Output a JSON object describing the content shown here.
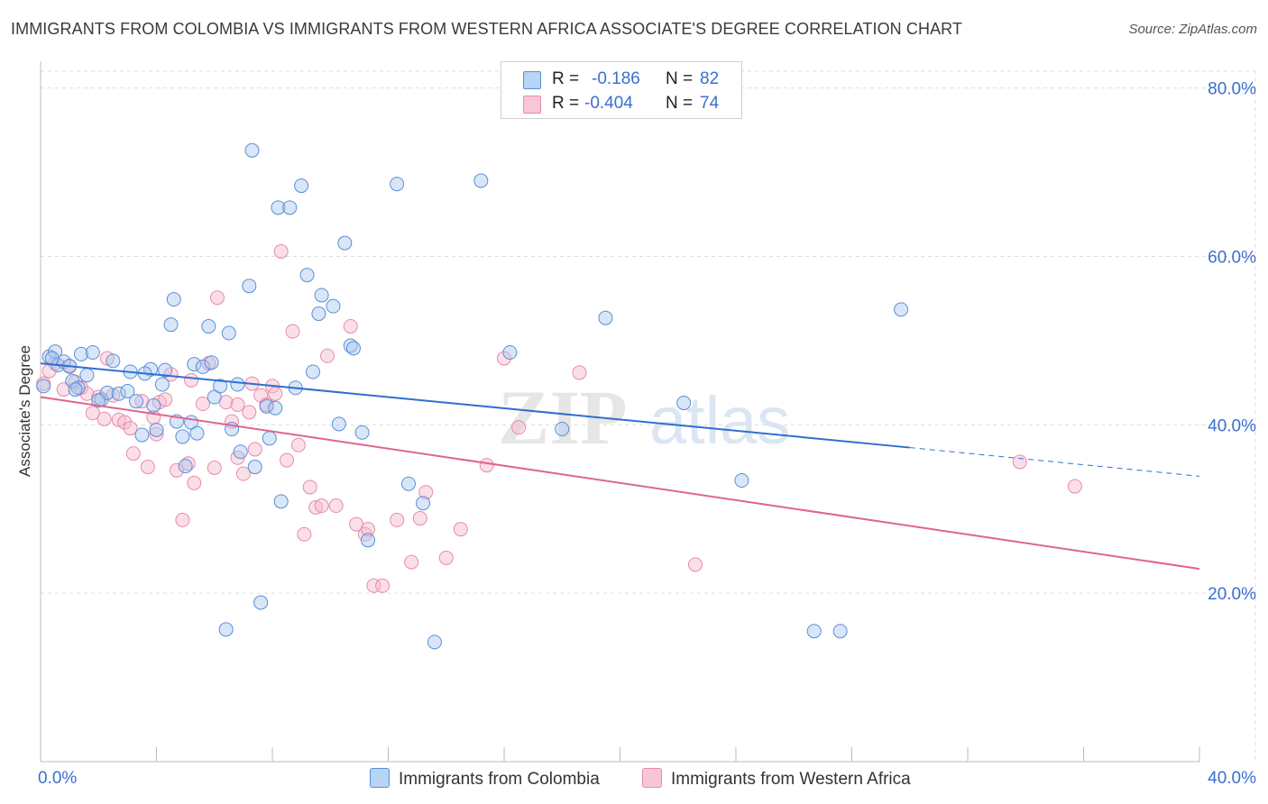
{
  "title": "IMMIGRANTS FROM COLOMBIA VS IMMIGRANTS FROM WESTERN AFRICA ASSOCIATE'S DEGREE CORRELATION CHART",
  "source": "Source: ZipAtlas.com",
  "watermark": {
    "part1": "ZIP",
    "part2": "atlas"
  },
  "colors": {
    "blue_fill": "#a9c8f0",
    "blue_stroke": "#5a8fd6",
    "blue_line": "#2f6fd0",
    "pink_fill": "#f7b8cb",
    "pink_stroke": "#e98aa8",
    "pink_line": "#e0648f",
    "tick_label": "#3a6fd0",
    "grid": "#dddddd"
  },
  "legend_top": {
    "rows": [
      {
        "series": "blue",
        "r_label": "R =",
        "r_value": "-0.186",
        "n_label": "N =",
        "n_value": "82"
      },
      {
        "series": "pink",
        "r_label": "R =",
        "r_value": "-0.404",
        "n_label": "N =",
        "n_value": "74"
      }
    ]
  },
  "legend_bottom": {
    "items": [
      {
        "series": "blue",
        "label": "Immigrants from Colombia"
      },
      {
        "series": "pink",
        "label": "Immigrants from Western Africa"
      }
    ]
  },
  "chart_data": {
    "type": "scatter",
    "title": "IMMIGRANTS FROM COLOMBIA VS IMMIGRANTS FROM WESTERN AFRICA ASSOCIATE'S DEGREE CORRELATION CHART",
    "xlabel": "",
    "ylabel": "Associate's Degree",
    "xlim": [
      0,
      40
    ],
    "ylim": [
      0,
      82
    ],
    "x_tick_labels": [
      {
        "value": 0,
        "label": "0.0%"
      },
      {
        "value": 40,
        "label": "40.0%"
      }
    ],
    "y_tick_labels": [
      {
        "value": 20,
        "label": "20.0%"
      },
      {
        "value": 40,
        "label": "40.0%"
      },
      {
        "value": 60,
        "label": "60.0%"
      },
      {
        "value": 80,
        "label": "80.0%"
      }
    ],
    "grid": true,
    "series": [
      {
        "name": "Immigrants from Colombia",
        "color": "blue",
        "R": -0.186,
        "N": 82,
        "trend": {
          "x_start": 0,
          "y_start": 47.3,
          "x_end": 30,
          "y_end": 37.3,
          "dash_to_x": 40,
          "dash_to_y": 33.9
        },
        "points": [
          [
            0.1,
            44.6
          ],
          [
            0.3,
            48.1
          ],
          [
            0.5,
            48.7
          ],
          [
            0.6,
            47.1
          ],
          [
            0.8,
            47.5
          ],
          [
            1.0,
            47.0
          ],
          [
            1.1,
            45.2
          ],
          [
            1.3,
            44.4
          ],
          [
            1.4,
            48.4
          ],
          [
            1.6,
            45.9
          ],
          [
            1.8,
            48.6
          ],
          [
            2.1,
            43.0
          ],
          [
            2.3,
            43.8
          ],
          [
            2.5,
            47.6
          ],
          [
            2.7,
            43.7
          ],
          [
            3.0,
            44.0
          ],
          [
            3.1,
            46.3
          ],
          [
            3.3,
            42.8
          ],
          [
            3.5,
            38.8
          ],
          [
            3.8,
            46.6
          ],
          [
            3.9,
            42.3
          ],
          [
            4.0,
            39.4
          ],
          [
            4.2,
            44.8
          ],
          [
            4.3,
            46.5
          ],
          [
            4.5,
            51.9
          ],
          [
            4.6,
            54.9
          ],
          [
            4.7,
            40.4
          ],
          [
            4.9,
            38.6
          ],
          [
            5.2,
            40.3
          ],
          [
            5.3,
            47.2
          ],
          [
            5.4,
            39.0
          ],
          [
            5.6,
            46.9
          ],
          [
            5.8,
            51.7
          ],
          [
            5.9,
            47.4
          ],
          [
            6.0,
            43.3
          ],
          [
            6.2,
            44.6
          ],
          [
            6.4,
            15.7
          ],
          [
            6.5,
            50.9
          ],
          [
            6.6,
            39.5
          ],
          [
            6.8,
            44.8
          ],
          [
            7.2,
            56.5
          ],
          [
            7.3,
            72.6
          ],
          [
            7.4,
            35.0
          ],
          [
            7.6,
            18.9
          ],
          [
            7.8,
            42.2
          ],
          [
            7.9,
            38.4
          ],
          [
            8.1,
            42.0
          ],
          [
            8.2,
            65.8
          ],
          [
            8.3,
            30.9
          ],
          [
            8.6,
            65.8
          ],
          [
            8.8,
            44.4
          ],
          [
            9.0,
            68.4
          ],
          [
            9.2,
            57.8
          ],
          [
            9.4,
            46.3
          ],
          [
            9.6,
            53.2
          ],
          [
            9.7,
            55.4
          ],
          [
            10.1,
            54.1
          ],
          [
            10.3,
            40.1
          ],
          [
            10.5,
            61.6
          ],
          [
            10.7,
            49.4
          ],
          [
            10.8,
            49.1
          ],
          [
            11.1,
            39.1
          ],
          [
            11.3,
            26.3
          ],
          [
            12.3,
            68.6
          ],
          [
            12.7,
            33.0
          ],
          [
            13.2,
            30.7
          ],
          [
            13.6,
            14.2
          ],
          [
            15.2,
            69.0
          ],
          [
            16.2,
            48.6
          ],
          [
            18.0,
            39.5
          ],
          [
            19.5,
            52.7
          ],
          [
            22.2,
            42.6
          ],
          [
            24.2,
            33.4
          ],
          [
            26.7,
            15.5
          ],
          [
            27.6,
            15.5
          ],
          [
            29.7,
            53.7
          ],
          [
            0.4,
            47.9
          ],
          [
            1.2,
            44.2
          ],
          [
            2.0,
            42.9
          ],
          [
            3.6,
            46.1
          ],
          [
            5.0,
            35.1
          ],
          [
            6.9,
            36.8
          ]
        ]
      },
      {
        "name": "Immigrants from Western Africa",
        "color": "pink",
        "R": -0.404,
        "N": 74,
        "trend": {
          "x_start": 0,
          "y_start": 43.3,
          "x_end": 40,
          "y_end": 22.9
        },
        "points": [
          [
            0.1,
            44.9
          ],
          [
            0.3,
            46.4
          ],
          [
            0.5,
            47.3
          ],
          [
            0.8,
            44.2
          ],
          [
            1.0,
            46.9
          ],
          [
            1.2,
            45.1
          ],
          [
            1.4,
            44.4
          ],
          [
            1.6,
            43.7
          ],
          [
            1.8,
            41.4
          ],
          [
            2.0,
            43.3
          ],
          [
            2.3,
            47.9
          ],
          [
            2.5,
            43.5
          ],
          [
            2.7,
            40.6
          ],
          [
            2.9,
            40.3
          ],
          [
            3.1,
            39.6
          ],
          [
            3.2,
            36.6
          ],
          [
            3.5,
            42.8
          ],
          [
            3.7,
            35.0
          ],
          [
            3.9,
            40.9
          ],
          [
            4.1,
            42.7
          ],
          [
            4.3,
            43.0
          ],
          [
            4.5,
            46.0
          ],
          [
            4.7,
            34.6
          ],
          [
            4.9,
            28.7
          ],
          [
            5.1,
            35.4
          ],
          [
            5.2,
            45.3
          ],
          [
            5.3,
            33.1
          ],
          [
            5.6,
            42.5
          ],
          [
            5.8,
            47.3
          ],
          [
            6.0,
            34.9
          ],
          [
            6.1,
            55.1
          ],
          [
            6.4,
            42.7
          ],
          [
            6.6,
            40.4
          ],
          [
            6.8,
            42.4
          ],
          [
            7.0,
            34.2
          ],
          [
            7.2,
            41.5
          ],
          [
            7.3,
            44.9
          ],
          [
            7.4,
            37.1
          ],
          [
            7.6,
            43.5
          ],
          [
            7.8,
            42.4
          ],
          [
            8.0,
            44.6
          ],
          [
            8.1,
            43.7
          ],
          [
            8.3,
            60.6
          ],
          [
            8.5,
            35.8
          ],
          [
            8.7,
            51.1
          ],
          [
            8.9,
            37.6
          ],
          [
            9.1,
            27.0
          ],
          [
            9.3,
            32.6
          ],
          [
            9.5,
            30.2
          ],
          [
            9.7,
            30.4
          ],
          [
            9.9,
            48.2
          ],
          [
            10.2,
            30.4
          ],
          [
            10.7,
            51.7
          ],
          [
            10.9,
            28.2
          ],
          [
            11.2,
            27.0
          ],
          [
            11.3,
            27.6
          ],
          [
            11.5,
            20.9
          ],
          [
            11.8,
            20.9
          ],
          [
            12.3,
            28.7
          ],
          [
            12.8,
            23.7
          ],
          [
            13.1,
            28.9
          ],
          [
            13.3,
            32.0
          ],
          [
            14.0,
            24.2
          ],
          [
            14.5,
            27.6
          ],
          [
            15.4,
            35.2
          ],
          [
            16.0,
            47.9
          ],
          [
            16.5,
            39.7
          ],
          [
            18.6,
            46.2
          ],
          [
            22.6,
            23.4
          ],
          [
            33.8,
            35.6
          ],
          [
            35.7,
            32.7
          ],
          [
            2.2,
            40.7
          ],
          [
            4.0,
            38.9
          ],
          [
            6.8,
            36.1
          ]
        ]
      }
    ]
  }
}
